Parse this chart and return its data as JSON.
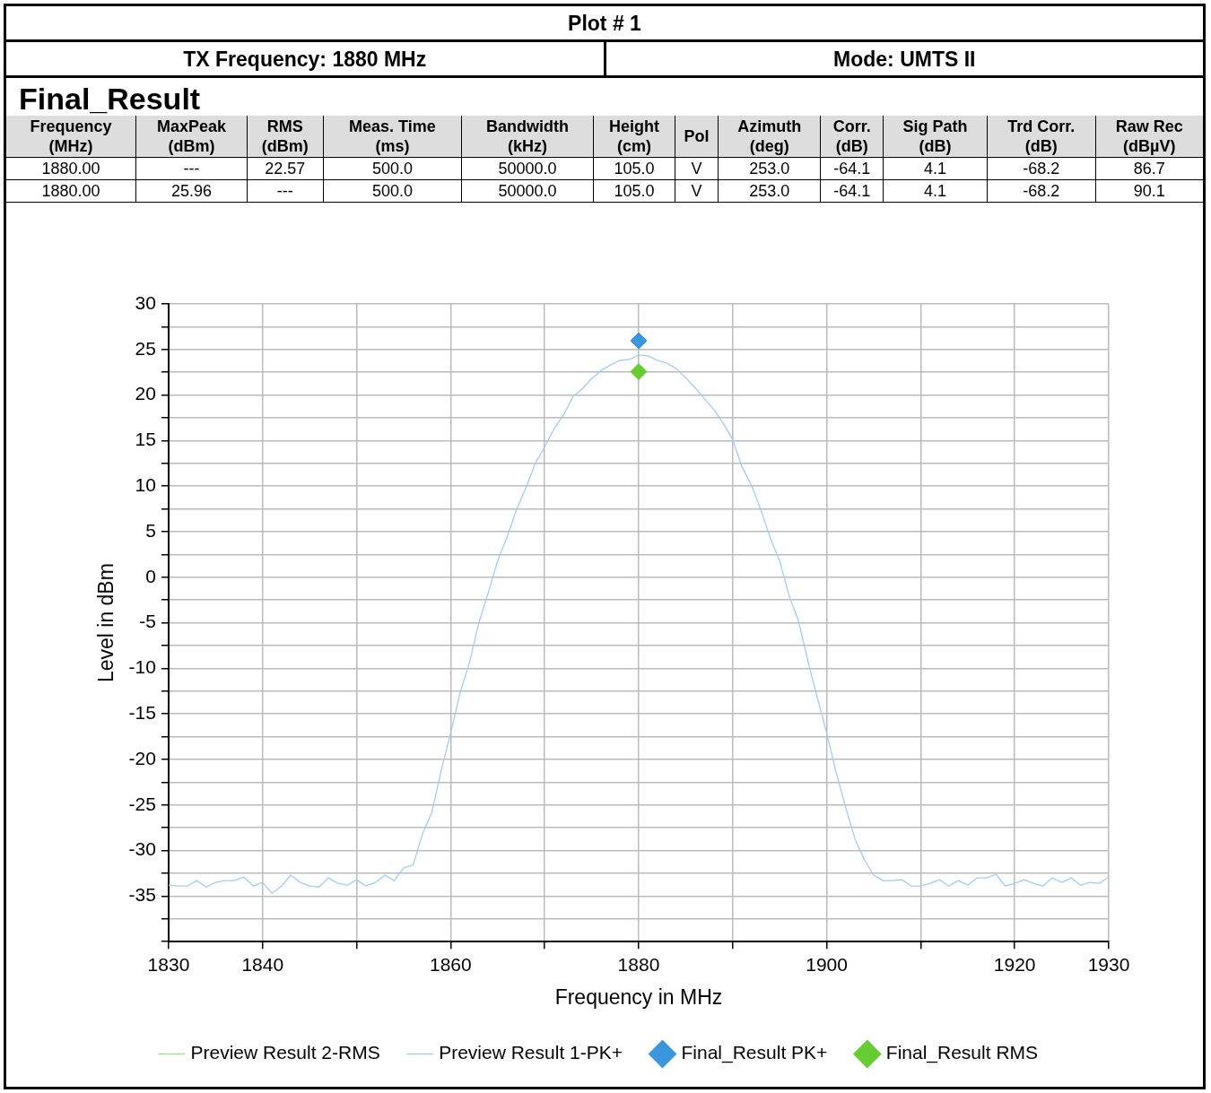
{
  "chart_data": {
    "type": "line",
    "title": "Plot # 1",
    "annotations": [
      "TX Frequency: 1880 MHz",
      "Mode: UMTS II",
      "Final_Result",
      "Frequency\n(MHz)",
      "MaxPeak\n(dBm)",
      "RMS\n(dBm)",
      "Meas. Time\n(ms)",
      "Bandwidth\n(kHz)",
      "Height\n(cm)",
      "Pol",
      "Azimuth\n(deg)",
      "Corr.\n(dB)",
      "Sig Path\n(dB)",
      "Trd Corr.\n(dB)",
      "Raw Rec\n(dBµV)",
      "1880.00",
      "---",
      "22.57",
      "500.0",
      "50000.0",
      "105.0",
      "V",
      "253.0",
      "-64.1",
      "4.1",
      "-68.2",
      "86.7",
      "1880.00",
      "25.96",
      "---",
      "500.0",
      "50000.0",
      "105.0",
      "V",
      "253.0",
      "-64.1",
      "4.1",
      "-68.2",
      "90.1"
    ],
    "xlabel": "Frequency in MHz",
    "ylabel": "Level in dBm",
    "x": [
      1830,
      1831,
      1832,
      1833,
      1834,
      1835,
      1836,
      1837,
      1838,
      1839,
      1840,
      1841,
      1842,
      1843,
      1844,
      1845,
      1846,
      1847,
      1848,
      1849,
      1850,
      1851,
      1852,
      1853,
      1854,
      1855,
      1856,
      1857,
      1858,
      1859,
      1860,
      1861,
      1862,
      1863,
      1864,
      1865,
      1866,
      1867,
      1868,
      1869,
      1870,
      1871,
      1872,
      1873,
      1874,
      1875,
      1876,
      1877,
      1878,
      1879,
      1880,
      1881,
      1882,
      1883,
      1884,
      1885,
      1886,
      1887,
      1888,
      1889,
      1890,
      1891,
      1892,
      1893,
      1894,
      1895,
      1896,
      1897,
      1898,
      1899,
      1900,
      1901,
      1902,
      1903,
      1904,
      1905,
      1906,
      1907,
      1908,
      1909,
      1910,
      1911,
      1912,
      1913,
      1914,
      1915,
      1916,
      1917,
      1918,
      1919,
      1920,
      1921,
      1922,
      1923,
      1924,
      1925,
      1926,
      1927,
      1928,
      1929,
      1930
    ],
    "series": [
      {
        "name": "Preview Result 2-RMS",
        "marker": "none",
        "color": "#90ee70",
        "values": [
          null,
          null,
          null,
          null,
          null,
          null,
          null,
          null,
          null,
          null,
          null,
          null,
          null,
          null,
          null,
          null,
          null,
          null,
          null,
          null,
          null,
          null,
          null,
          null,
          null,
          null,
          null,
          null,
          null,
          null,
          null,
          null,
          null,
          null,
          null,
          null,
          null,
          null,
          null,
          null,
          null,
          null,
          null,
          null,
          null,
          null,
          null,
          null,
          null,
          null,
          null,
          null,
          null,
          null,
          null,
          null,
          null,
          null,
          null,
          null,
          null,
          null,
          null,
          null,
          null,
          null,
          null,
          null,
          null,
          null,
          null,
          null,
          null,
          null,
          null,
          null,
          null,
          null,
          null,
          null,
          null,
          null,
          null,
          null,
          null,
          null,
          null,
          null,
          null,
          null,
          null,
          null,
          null,
          null,
          null,
          null,
          null,
          null,
          null,
          null,
          null
        ]
      },
      {
        "name": "Preview Result 1-PK+",
        "marker": "none",
        "color": "#a0cdf8",
        "values": [
          -33.8,
          -33.9,
          -33.9,
          -33.3,
          -34.0,
          -33.5,
          -33.3,
          -33.3,
          -32.9,
          -33.9,
          -33.5,
          -34.7,
          -33.9,
          -32.7,
          -33.5,
          -33.9,
          -34.0,
          -33.0,
          -33.6,
          -33.8,
          -33.2,
          -33.9,
          -33.5,
          -32.7,
          -33.3,
          -31.9,
          -31.6,
          -28.2,
          -25.8,
          -21.2,
          -17.1,
          -12.7,
          -9.4,
          -5.0,
          -1.7,
          1.8,
          4.4,
          7.4,
          9.8,
          12.5,
          14.3,
          16.3,
          17.8,
          19.8,
          20.7,
          21.8,
          22.7,
          23.3,
          23.8,
          23.9,
          24.4,
          24.3,
          23.8,
          23.5,
          22.9,
          21.9,
          20.8,
          19.6,
          18.4,
          16.9,
          15.1,
          12.1,
          10.1,
          7.4,
          4.3,
          1.8,
          -2.0,
          -4.8,
          -9.2,
          -13.2,
          -17.1,
          -21.4,
          -25.2,
          -28.7,
          -31.0,
          -32.7,
          -33.3,
          -33.3,
          -33.2,
          -33.9,
          -33.9,
          -33.6,
          -33.2,
          -33.9,
          -33.3,
          -33.8,
          -33.0,
          -33.0,
          -32.6,
          -33.9,
          -33.6,
          -33.2,
          -33.6,
          -33.9,
          -33.0,
          -33.5,
          -33.0,
          -33.8,
          -33.5,
          -33.6,
          -32.9
        ]
      },
      {
        "name": "Final_Result PK+",
        "type": "scatter",
        "marker": "diamond",
        "color": "#3a96dd",
        "x": [
          1880
        ],
        "values": [
          25.96
        ]
      },
      {
        "name": "Final_Result RMS",
        "type": "scatter",
        "marker": "diamond",
        "color": "#66cc33",
        "x": [
          1880
        ],
        "values": [
          22.57
        ]
      }
    ],
    "xlim": [
      1830,
      1930
    ],
    "xticks": [
      1830,
      1840,
      {
        "value": 1850,
        "label": null
      },
      1860,
      {
        "value": 1870,
        "label": null
      },
      1880,
      {
        "value": 1890,
        "label": null
      },
      1900,
      {
        "value": 1910,
        "label": null
      },
      1920,
      1930
    ],
    "ylim": [
      -40,
      30
    ],
    "yticks": [
      {
        "value": -40,
        "label": null
      },
      {
        "value": -37.5,
        "label": null
      },
      -35,
      {
        "value": -32.5,
        "label": null
      },
      -30,
      {
        "value": -27.5,
        "label": null
      },
      -25,
      {
        "value": -22.5,
        "label": null
      },
      -20,
      {
        "value": -17.5,
        "label": null
      },
      -15,
      {
        "value": -12.5,
        "label": null
      },
      -10,
      {
        "value": -7.5,
        "label": null
      },
      -5,
      {
        "value": -2.5,
        "label": null
      },
      0,
      {
        "value": 2.5,
        "label": null
      },
      5,
      {
        "value": 7.5,
        "label": null
      },
      10,
      {
        "value": 12.5,
        "label": null
      },
      15,
      {
        "value": 17.5,
        "label": null
      },
      20,
      {
        "value": 22.5,
        "label": null
      },
      25,
      {
        "value": 27.5,
        "label": null
      },
      30
    ],
    "grid": true,
    "legend": "bottom"
  }
}
